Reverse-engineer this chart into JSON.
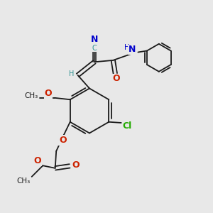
{
  "bg_color": "#e8e8e8",
  "colors": {
    "bond": "#1a1a1a",
    "N": "#0000cc",
    "O": "#cc2200",
    "Cl": "#22aa00",
    "H": "#2a9090",
    "C_teal": "#2a9090"
  },
  "bond_lw": 1.3,
  "font_size": 7.5,
  "xlim": [
    0,
    10
  ],
  "ylim": [
    0,
    10
  ]
}
